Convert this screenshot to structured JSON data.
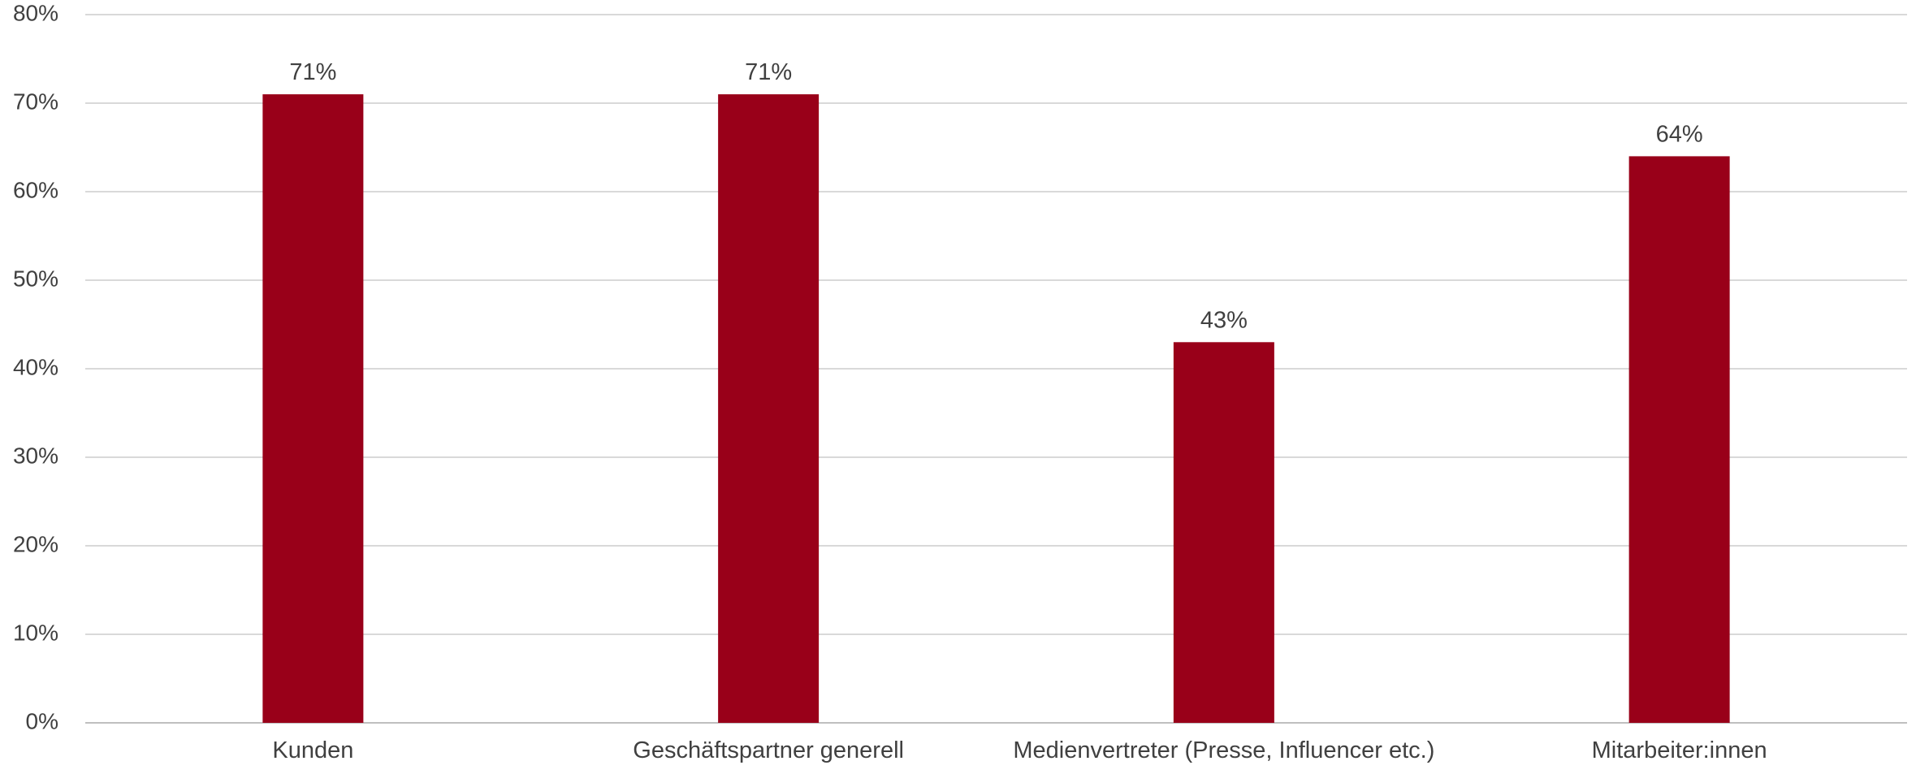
{
  "chart_data": {
    "type": "bar",
    "categories": [
      "Kunden",
      "Geschäftspartner generell",
      "Medienvertreter (Presse, Influencer etc.)",
      "Mitarbeiter:innen"
    ],
    "values": [
      71,
      71,
      43,
      64
    ],
    "data_labels": [
      "71%",
      "71%",
      "43%",
      "64%"
    ],
    "y_ticks": [
      "0%",
      "10%",
      "20%",
      "30%",
      "40%",
      "50%",
      "60%",
      "70%",
      "80%"
    ],
    "ylim": [
      0,
      80
    ],
    "grid": true,
    "bar_color": "#990019",
    "title": "",
    "xlabel": "",
    "ylabel": ""
  }
}
